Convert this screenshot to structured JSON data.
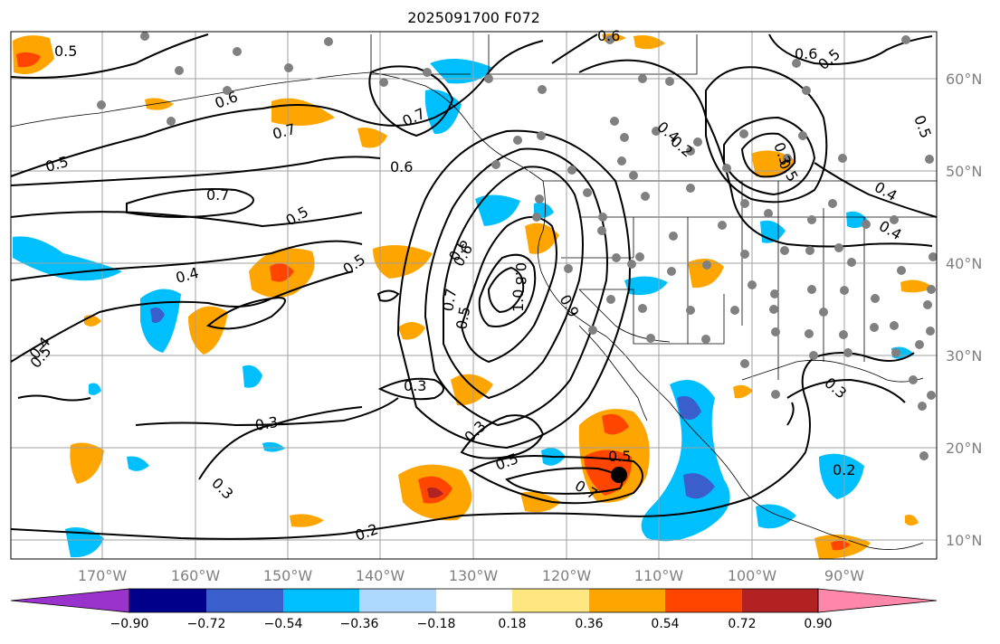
{
  "title": "2025091700 F072",
  "lat_labels": [
    "60°N",
    "50°N",
    "40°N",
    "30°N",
    "20°N",
    "10°N"
  ],
  "lon_labels": [
    "170°W",
    "160°W",
    "150°W",
    "140°W",
    "130°W",
    "120°W",
    "110°W",
    "100°W",
    "90°W"
  ],
  "colorbar": {
    "tick_labels": [
      "−0.90",
      "−0.72",
      "−0.54",
      "−0.36",
      "−0.18",
      "0.18",
      "0.36",
      "0.54",
      "0.72",
      "0.90"
    ],
    "colors": [
      "#9933cc",
      "#00008b",
      "#3a5fcd",
      "#00bfff",
      "#add8ff",
      "#ffffff",
      "#ffe680",
      "#ffa500",
      "#ff4500",
      "#b22222",
      "#ff88aa"
    ]
  },
  "contour_labels": [
    "0.5",
    "0.6",
    "0.7",
    "0.5",
    "0.7",
    "0.6",
    "0.5",
    "0.4",
    "0.5",
    "0.3",
    "0.6",
    "0.7",
    "0.5",
    "0.4",
    "0.5",
    "0.7",
    "1.0",
    "0.8",
    "0.6",
    "0.9",
    "0.5",
    "0.3",
    "0.3",
    "0.3",
    "0.2",
    "0.5",
    "0.7",
    "0.5",
    "0.3",
    "0.4",
    "0.2",
    "0.5",
    "0.6",
    "0.3",
    "0.2",
    "0.6",
    "0.5",
    "0.4",
    "0.4"
  ],
  "colors": {
    "contour": "#000000",
    "station_dot": "#808080",
    "grid": "#a0a0a0",
    "storm_marker": "#000000"
  }
}
